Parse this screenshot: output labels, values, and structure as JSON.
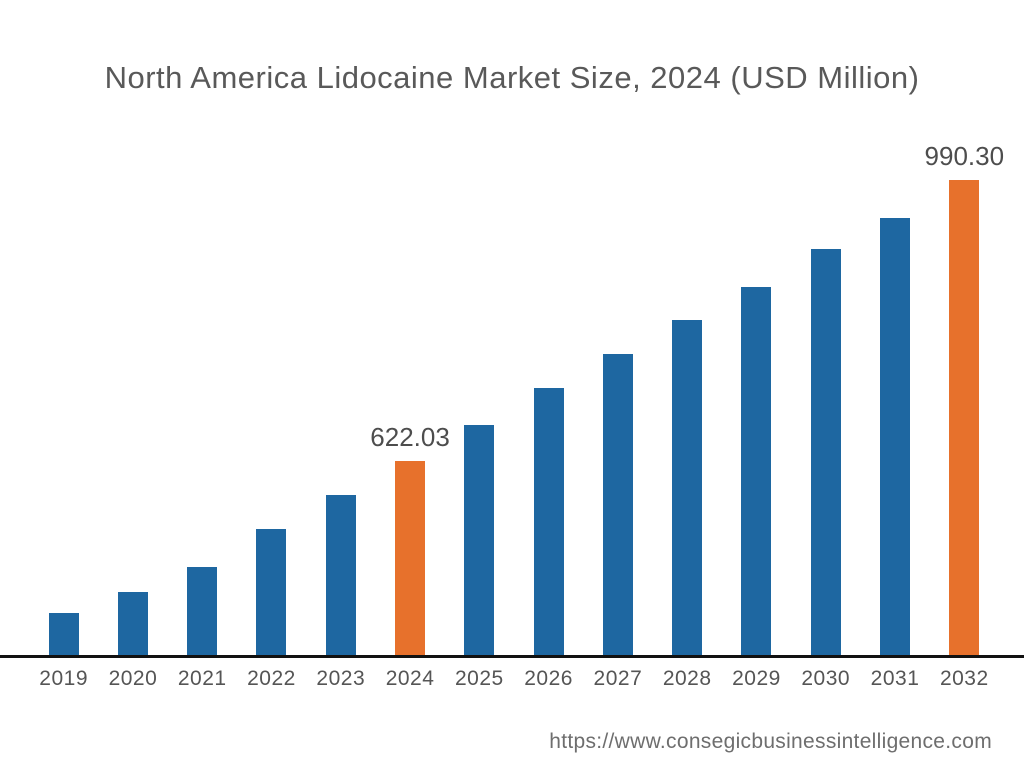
{
  "title": "North America Lidocaine Market Size, 2024 (USD Million)",
  "source_url": "https://www.consegicbusinessintelligence.com",
  "colors": {
    "bar_default": "#1e67a1",
    "bar_highlight": "#e7712c",
    "axis": "#111111",
    "title_text": "#595959",
    "value_label_text": "#4d4d4d",
    "tick_text": "#555555",
    "url_text": "#6e6e6e"
  },
  "chart_data": {
    "type": "bar",
    "title": "North America Lidocaine Market Size, 2024 (USD Million)",
    "categories": [
      "2019",
      "2020",
      "2021",
      "2022",
      "2023",
      "2024",
      "2025",
      "2026",
      "2027",
      "2028",
      "2029",
      "2030",
      "2031",
      "2032"
    ],
    "values": [
      423.6,
      451.0,
      483.6,
      533.3,
      577.7,
      622.03,
      669.1,
      717.4,
      761.8,
      807.5,
      850.6,
      900.2,
      940.7,
      990.3
    ],
    "labeled_values": {
      "2024": "622.03",
      "2032": "990.30"
    },
    "highlighted_categories": [
      "2024",
      "2032"
    ],
    "xlabel": "",
    "ylabel": "",
    "grid": false,
    "legend_position": "none",
    "axis_value_range_as_drawn": [
      368.7,
      1225.4
    ]
  }
}
